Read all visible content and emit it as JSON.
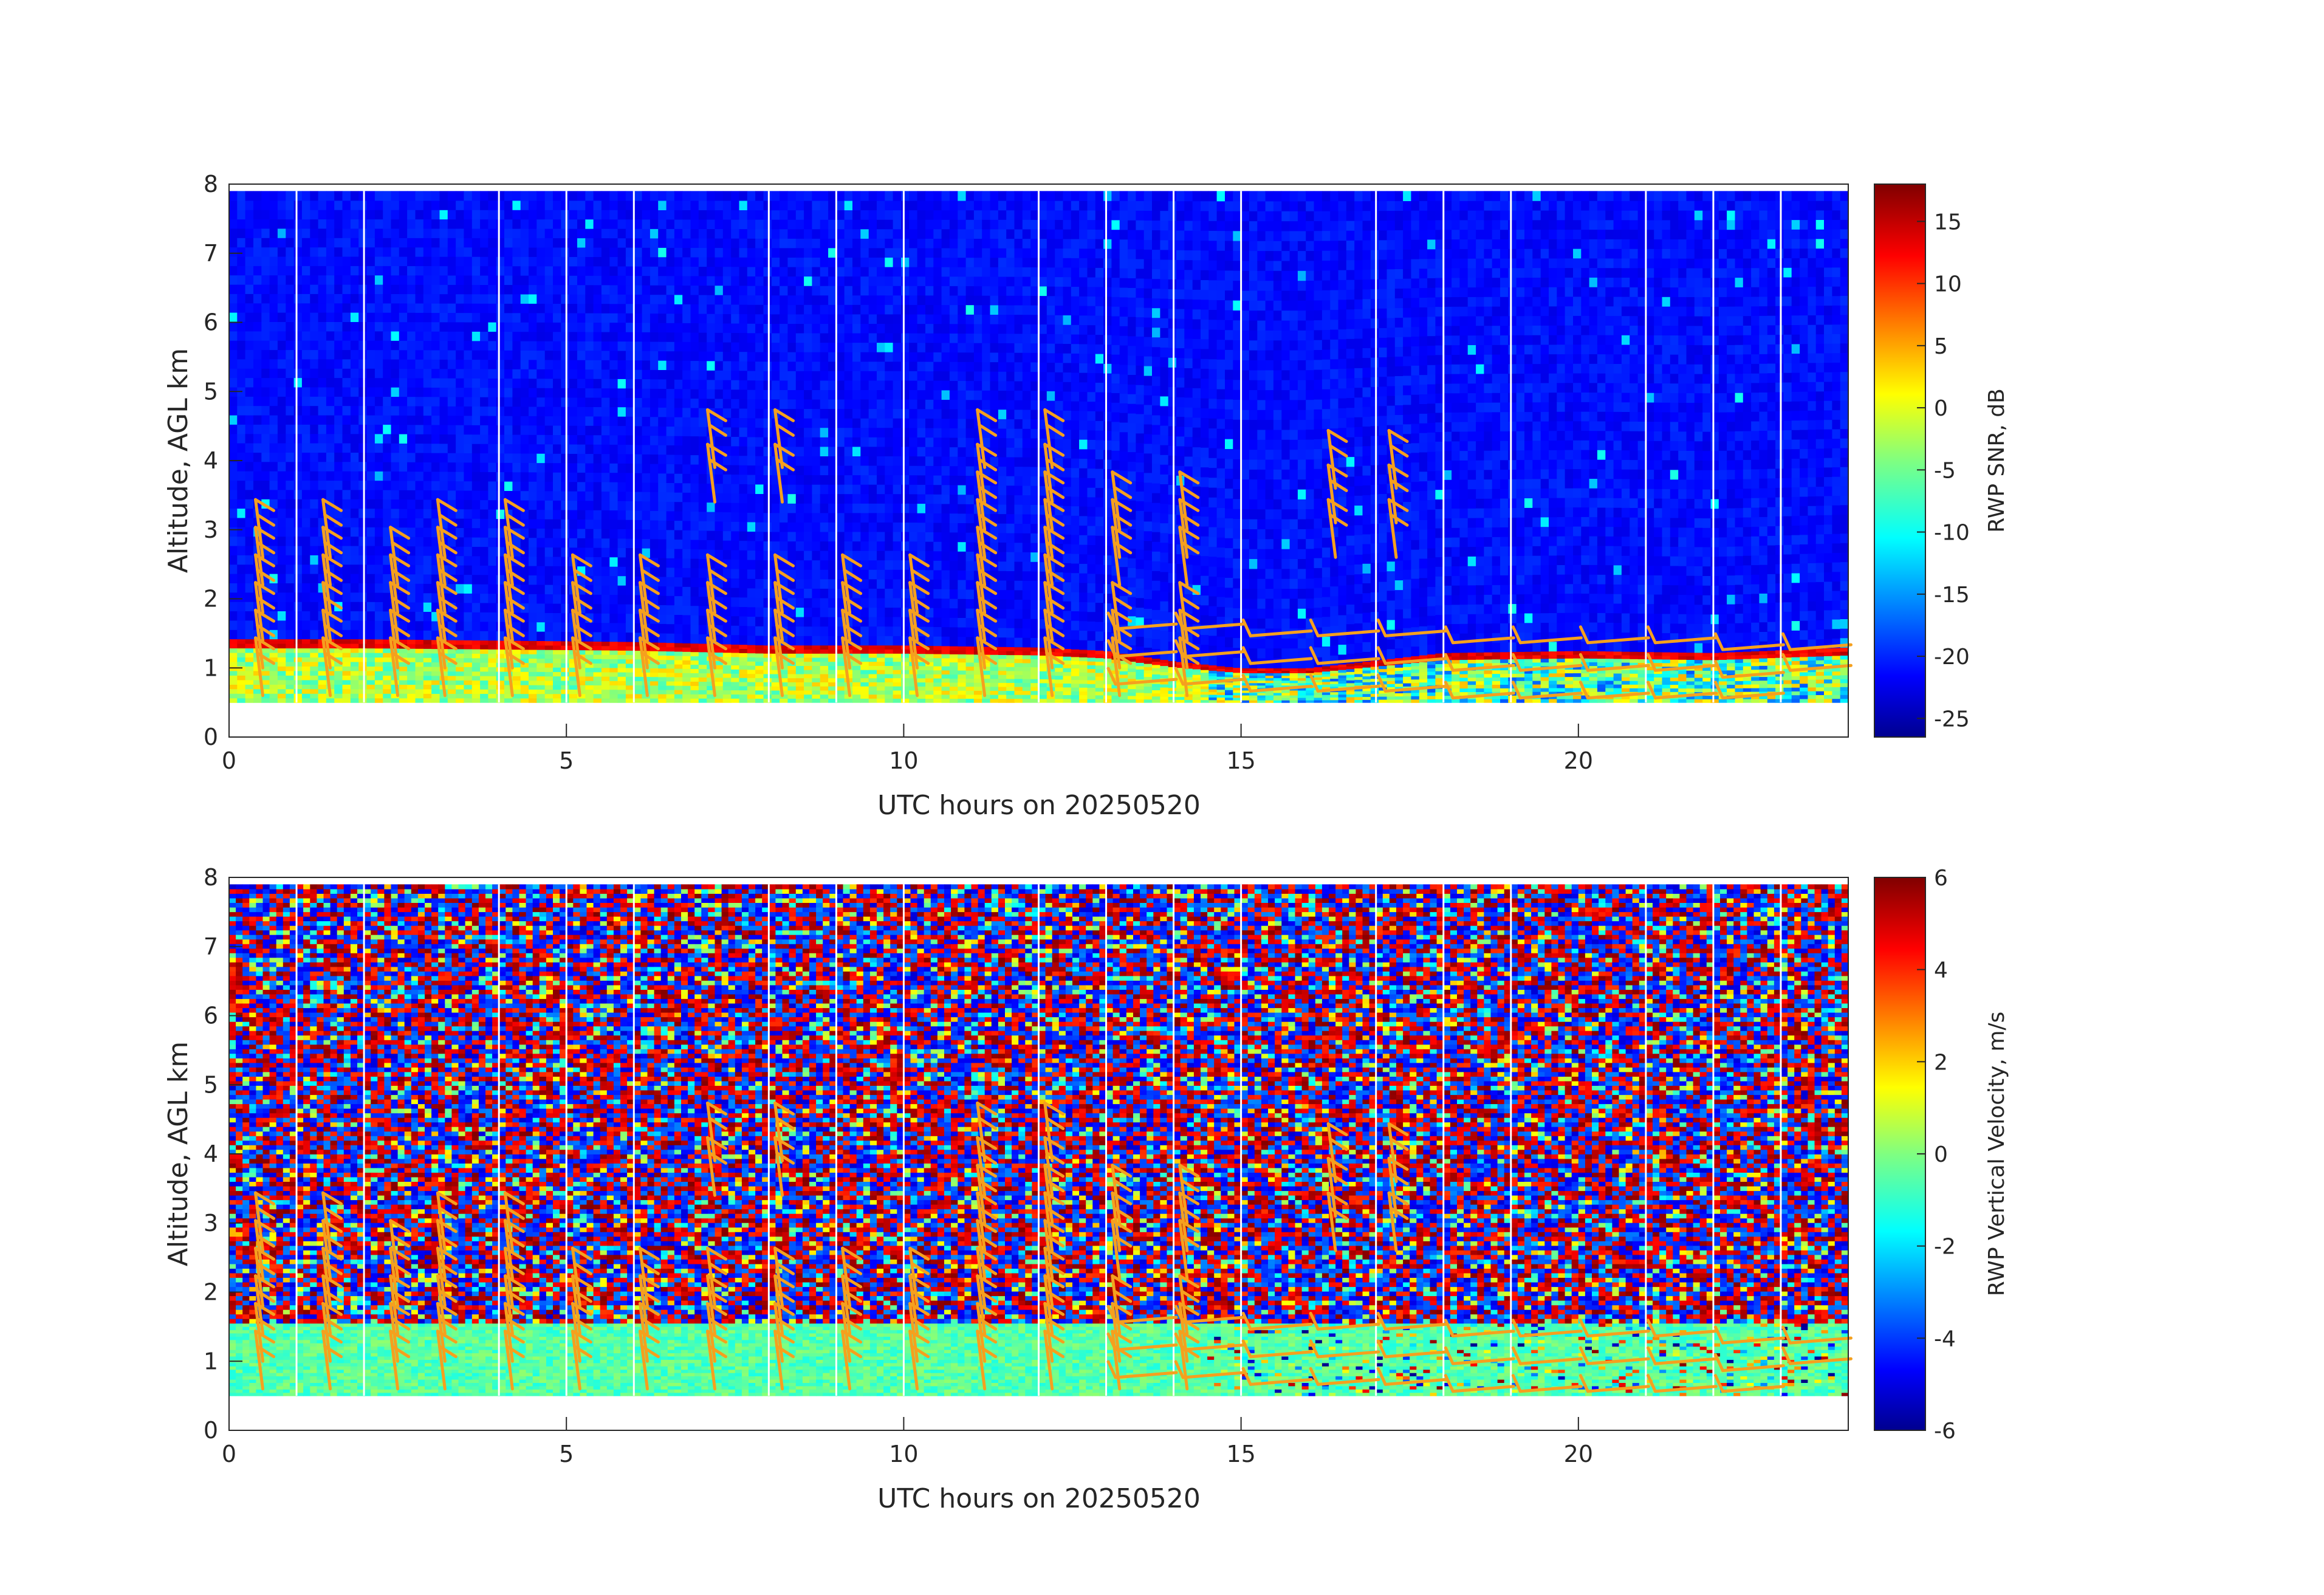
{
  "chart_data": [
    {
      "type": "heatmap",
      "xlabel": "UTC hours on 20250520",
      "ylabel": "Altitude, AGL km",
      "xlim": [
        0,
        24
      ],
      "ylim": [
        0,
        8
      ],
      "xticks": [
        "0",
        "5",
        "10",
        "15",
        "20"
      ],
      "yticks": [
        "0",
        "1",
        "2",
        "3",
        "4",
        "5",
        "6",
        "7",
        "8"
      ],
      "colorbar": {
        "label": "RWP SNR, dB",
        "clim": [
          -26.5,
          18
        ],
        "ticks": [
          "15",
          "10",
          "5",
          "0",
          "-5",
          "-10",
          "-15",
          "-20",
          "-25"
        ],
        "colormap": "jet"
      },
      "data_range_km": [
        0.5,
        7.9
      ],
      "boundary_layer_top_km": [
        [
          0,
          1.42
        ],
        [
          2,
          1.42
        ],
        [
          4,
          1.4
        ],
        [
          6,
          1.38
        ],
        [
          8,
          1.33
        ],
        [
          10,
          1.33
        ],
        [
          12,
          1.3
        ],
        [
          13,
          1.25
        ],
        [
          14,
          1.1
        ],
        [
          15,
          1.0
        ],
        [
          16,
          1.0
        ],
        [
          18,
          1.22
        ],
        [
          20,
          1.25
        ],
        [
          22,
          1.22
        ],
        [
          24,
          1.3
        ]
      ],
      "wind_barb_color": "#f5a01e"
    },
    {
      "type": "heatmap",
      "xlabel": "UTC hours on 20250520",
      "ylabel": "Altitude, AGL km",
      "xlim": [
        0,
        24
      ],
      "ylim": [
        0,
        8
      ],
      "xticks": [
        "0",
        "5",
        "10",
        "15",
        "20"
      ],
      "yticks": [
        "0",
        "1",
        "2",
        "3",
        "4",
        "5",
        "6",
        "7",
        "8"
      ],
      "colorbar": {
        "label": "RWP Vertical Velocity, m/s",
        "clim": [
          -6,
          6
        ],
        "ticks": [
          "6",
          "4",
          "2",
          "0",
          "-2",
          "-4",
          "-6"
        ],
        "colormap": "jet"
      },
      "data_range_km": [
        0.5,
        7.9
      ],
      "boundary_layer_top_km": [
        [
          0,
          1.55
        ],
        [
          24,
          1.55
        ]
      ],
      "wind_barb_color": "#f5a01e"
    }
  ],
  "wind_barbs": [
    {
      "t": 0.5,
      "alts": [
        0.6,
        1.0,
        1.4,
        1.8,
        2.2,
        2.6
      ]
    },
    {
      "t": 1.5,
      "alts": [
        0.6,
        1.0,
        1.4,
        1.8,
        2.2,
        2.6
      ]
    },
    {
      "t": 2.5,
      "alts": [
        0.6,
        1.0,
        1.4,
        1.8,
        2.2
      ]
    },
    {
      "t": 3.2,
      "alts": [
        0.6,
        1.0,
        1.4,
        1.8,
        2.2,
        2.6
      ]
    },
    {
      "t": 4.2,
      "alts": [
        0.6,
        1.0,
        1.4,
        1.8,
        2.2,
        2.6
      ]
    },
    {
      "t": 5.2,
      "alts": [
        0.6,
        1.0,
        1.4,
        1.8
      ]
    },
    {
      "t": 6.2,
      "alts": [
        0.6,
        1.0,
        1.4,
        1.8
      ]
    },
    {
      "t": 7.2,
      "alts": [
        0.6,
        1.0,
        1.4,
        1.8,
        3.4,
        3.9
      ]
    },
    {
      "t": 8.2,
      "alts": [
        0.6,
        1.0,
        1.4,
        1.8,
        3.4,
        3.9
      ]
    },
    {
      "t": 9.2,
      "alts": [
        0.6,
        1.0,
        1.4,
        1.8
      ]
    },
    {
      "t": 10.2,
      "alts": [
        0.6,
        1.0,
        1.4,
        1.8
      ]
    },
    {
      "t": 11.2,
      "alts": [
        0.6,
        1.0,
        1.4,
        1.8,
        2.2,
        2.6,
        3.0,
        3.4,
        3.9
      ]
    },
    {
      "t": 12.2,
      "alts": [
        0.6,
        1.0,
        1.4,
        1.8,
        2.2,
        2.6,
        3.0,
        3.4,
        3.9
      ]
    },
    {
      "t": 13.2,
      "alts": [
        0.6,
        1.0,
        1.4,
        2.2,
        2.6,
        3.0
      ]
    },
    {
      "t": 14.2,
      "alts": [
        0.6,
        1.0,
        1.4,
        2.2,
        2.6,
        3.0
      ]
    },
    {
      "t": 16.4,
      "alts": [
        2.6,
        3.1,
        3.6
      ]
    },
    {
      "t": 17.3,
      "alts": [
        2.6,
        3.1,
        3.6
      ]
    }
  ],
  "wind_barbs_flat": [
    {
      "t": 13.5,
      "alts": [
        1.6,
        1.2,
        0.8
      ]
    },
    {
      "t": 14.5,
      "alts": [
        1.6,
        1.2,
        0.8
      ]
    },
    {
      "t": 15.5,
      "alts": [
        1.5,
        1.1,
        0.7
      ]
    },
    {
      "t": 16.5,
      "alts": [
        1.5,
        1.1,
        0.7
      ]
    },
    {
      "t": 17.5,
      "alts": [
        1.5,
        1.1,
        0.7
      ]
    },
    {
      "t": 18.5,
      "alts": [
        1.4,
        1.0,
        0.6
      ]
    },
    {
      "t": 19.5,
      "alts": [
        1.4,
        1.0,
        0.6
      ]
    },
    {
      "t": 20.5,
      "alts": [
        1.4,
        1.0,
        0.6
      ]
    },
    {
      "t": 21.5,
      "alts": [
        1.4,
        1.0,
        0.6
      ]
    },
    {
      "t": 22.5,
      "alts": [
        1.3,
        0.9,
        0.6
      ]
    },
    {
      "t": 23.5,
      "alts": [
        1.3,
        1.0
      ]
    }
  ],
  "gap_times_utc": [
    1.0,
    2.0,
    4.0,
    5.0,
    6.0,
    8.0,
    9.0,
    10.0,
    12.0,
    13.0,
    14.0,
    15.0,
    17.0,
    18.0,
    19.0,
    21.0,
    22.0,
    23.0
  ]
}
